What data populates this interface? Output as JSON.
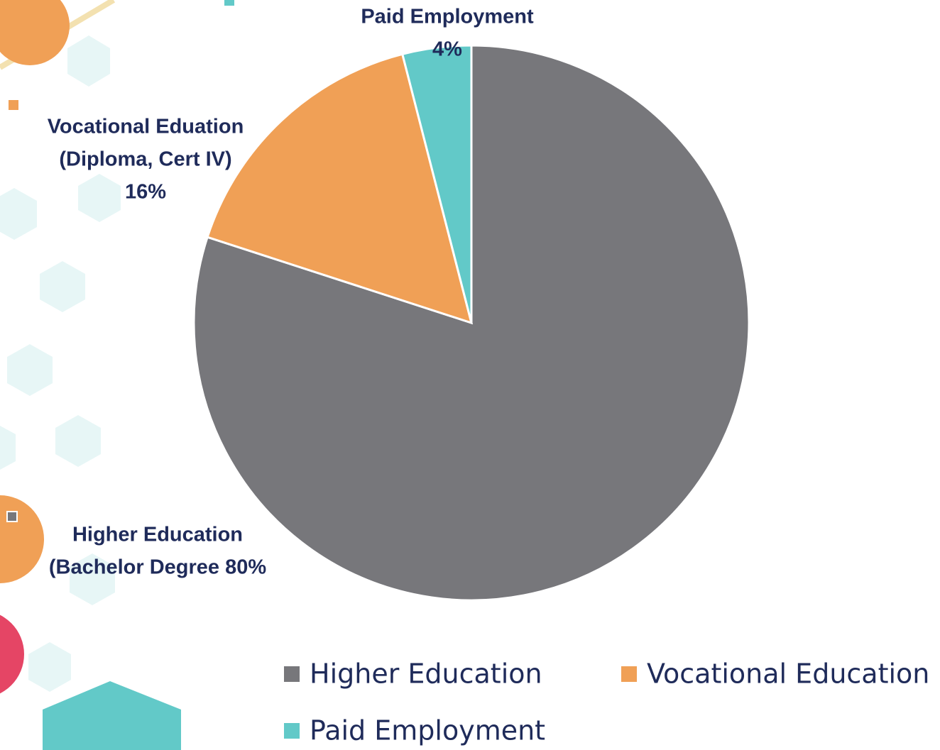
{
  "chart_data": {
    "type": "pie",
    "categories": [
      "Higher Education",
      "Vocational Education",
      "Paid Employment"
    ],
    "values": [
      80,
      16,
      4
    ],
    "colors": [
      "#77777b",
      "#f0a056",
      "#62c9c8"
    ],
    "data_labels": [
      [
        "Higher Education",
        "(Bachelor Degree 80%"
      ],
      [
        "Vocational Eduation",
        "(Diploma, Cert IV)",
        "16%"
      ],
      [
        "Paid Employment",
        "4%"
      ]
    ],
    "legend": "bottom"
  }
}
